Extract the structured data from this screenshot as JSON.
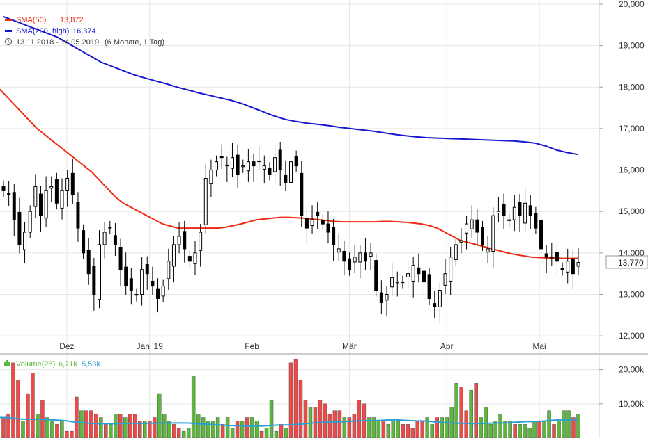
{
  "legend": {
    "sma50_label": "SMA(50)",
    "sma50_value": "13,872",
    "sma200_label": "SMA(200, high)",
    "sma200_value": "16,374",
    "range_text": "13.11.2018 - 14.05.2019",
    "range_detail": "(6 Monate, 1 Tag)",
    "volume_label": "Volume(28)",
    "volume_value": "6,71k",
    "volume_avg_value": "5,53k"
  },
  "last_price_label": "13,770",
  "colors": {
    "sma50": "#ee2a10",
    "sma200": "#1616d0",
    "volume_up": "#5cb83a",
    "volume_down": "#ee4a4a",
    "volume_avg": "#2a9fd6",
    "grid": "#e6e6e6"
  },
  "chart_data": [
    {
      "type": "candlestick",
      "y_ticks": [
        "12,000",
        "13,000",
        "14,000",
        "15,000",
        "16,000",
        "17,000",
        "18,000",
        "19,000",
        "20,000"
      ],
      "y_tick_values": [
        12,
        13,
        14,
        15,
        16,
        17,
        18,
        19,
        20
      ],
      "ylim": [
        11.55,
        20.1
      ],
      "x_ticks": [
        "Dez",
        "Jan '19",
        "Feb",
        "Mär",
        "Apr",
        "Mai"
      ],
      "x_tick_index": [
        13,
        30,
        51,
        71,
        91,
        110
      ],
      "n_days": 119,
      "grid": true,
      "close": [
        15.5,
        15.4,
        14.8,
        14.2,
        14.5,
        15.0,
        15.6,
        14.9,
        15.5,
        15.6,
        15.2,
        15.5,
        15.8,
        15.4,
        14.6,
        14.0,
        13.5,
        13.0,
        14.2,
        14.5,
        14.6,
        14.2,
        13.6,
        13.2,
        13.1,
        13.0,
        13.6,
        13.5,
        13.2,
        12.9,
        13.2,
        13.8,
        14.2,
        14.4,
        14.1,
        13.8,
        14.0,
        14.5,
        15.8,
        16.0,
        16.2,
        16.3,
        16.1,
        16.3,
        15.9,
        16.1,
        16.2,
        16.1,
        16.2,
        16.1,
        15.9,
        16.3,
        16.0,
        15.7,
        16.2,
        16.1,
        14.9,
        14.6,
        14.8,
        14.9,
        14.7,
        14.5,
        14.2,
        14.1,
        13.8,
        13.6,
        13.9,
        14.0,
        13.8,
        14.0,
        13.1,
        12.8,
        13.0,
        13.4,
        13.3,
        13.3,
        13.5,
        13.7,
        13.5,
        13.3,
        12.9,
        12.7,
        13.1,
        13.5,
        13.9,
        14.2,
        14.3,
        14.7,
        14.8,
        14.5,
        14.2,
        14.1,
        14.9,
        15.0,
        14.9,
        14.8,
        15.1,
        14.9,
        15.2,
        14.9,
        14.6,
        14.1,
        13.9,
        13.9,
        13.8,
        13.6,
        13.8,
        13.5,
        13.77
      ],
      "sma50": [
        18.0,
        17.8,
        17.6,
        17.4,
        17.2,
        17.0,
        16.85,
        16.7,
        16.55,
        16.4,
        16.25,
        16.1,
        15.95,
        15.75,
        15.55,
        15.35,
        15.2,
        15.1,
        15.0,
        14.9,
        14.8,
        14.7,
        14.65,
        14.6,
        14.6,
        14.6,
        14.6,
        14.6,
        14.6,
        14.62,
        14.66,
        14.7,
        14.75,
        14.8,
        14.82,
        14.84,
        14.86,
        14.86,
        14.85,
        14.84,
        14.82,
        14.8,
        14.78,
        14.76,
        14.75,
        14.75,
        14.75,
        14.75,
        14.75,
        14.76,
        14.76,
        14.75,
        14.74,
        14.72,
        14.7,
        14.66,
        14.6,
        14.5,
        14.4,
        14.3,
        14.25,
        14.2,
        14.15,
        14.1,
        14.05,
        14.0,
        13.96,
        13.93,
        13.9,
        13.89,
        13.88,
        13.88,
        13.87,
        13.87,
        13.872
      ],
      "sma200": [
        19.7,
        19.6,
        19.5,
        19.4,
        19.3,
        19.2,
        19.05,
        18.9,
        18.75,
        18.6,
        18.5,
        18.4,
        18.3,
        18.22,
        18.15,
        18.08,
        18.0,
        17.93,
        17.86,
        17.8,
        17.74,
        17.68,
        17.6,
        17.5,
        17.4,
        17.3,
        17.22,
        17.17,
        17.13,
        17.1,
        17.07,
        17.03,
        17.0,
        16.97,
        16.94,
        16.9,
        16.86,
        16.83,
        16.8,
        16.78,
        16.77,
        16.76,
        16.75,
        16.74,
        16.73,
        16.72,
        16.71,
        16.7,
        16.68,
        16.65,
        16.58,
        16.48,
        16.42,
        16.374
      ],
      "last_price": 13.77
    },
    {
      "type": "bar",
      "title": "Volume(28)",
      "y_ticks": [
        "10,00k",
        "20,00k"
      ],
      "y_tick_values": [
        10,
        20
      ],
      "ylim": [
        0,
        24
      ],
      "volumes": [
        6,
        7,
        22,
        17,
        5,
        13,
        19,
        7,
        11,
        6,
        5,
        4,
        5,
        2,
        2,
        12,
        8,
        8,
        8,
        7,
        6,
        4,
        4,
        7,
        7,
        6,
        7,
        7,
        5,
        5,
        5,
        6,
        13,
        7,
        5,
        4,
        3,
        2,
        3,
        18,
        7,
        6,
        5,
        5,
        6,
        4,
        6,
        3,
        5,
        5,
        6,
        6,
        5,
        2,
        3,
        11,
        2,
        4,
        3,
        22,
        23,
        17,
        11,
        9,
        9,
        11,
        10,
        7,
        8,
        8,
        6,
        6,
        7,
        11,
        10,
        6,
        6,
        5,
        5,
        4,
        5,
        5,
        4,
        4,
        3,
        5,
        5,
        6,
        4,
        6,
        6,
        6,
        9,
        16,
        15,
        8,
        14,
        16,
        6,
        9,
        4,
        5,
        7,
        5,
        5,
        4,
        4,
        4,
        3,
        5,
        5,
        5,
        8,
        4,
        5,
        8,
        8,
        6,
        7
      ],
      "up": [
        0,
        0,
        0,
        0,
        1,
        0,
        0,
        1,
        0,
        1,
        1,
        0,
        1,
        0,
        0,
        0,
        1,
        0,
        0,
        0,
        1,
        0,
        1,
        1,
        0,
        1,
        0,
        0,
        0,
        1,
        0,
        0,
        1,
        1,
        1,
        0,
        0,
        1,
        1,
        1,
        1,
        1,
        1,
        1,
        1,
        0,
        1,
        1,
        0,
        1,
        0,
        1,
        1,
        0,
        1,
        1,
        1,
        0,
        1,
        0,
        0,
        0,
        0,
        1,
        0,
        0,
        0,
        0,
        0,
        0,
        1,
        0,
        0,
        0,
        0,
        1,
        1,
        1,
        0,
        1,
        1,
        1,
        0,
        0,
        0,
        0,
        0,
        1,
        1,
        0,
        1,
        1,
        1,
        1,
        0,
        0,
        1,
        0,
        1,
        1,
        1,
        1,
        1,
        1,
        1,
        0,
        1,
        1,
        1,
        1,
        0,
        1,
        1,
        0,
        1,
        1,
        1,
        0,
        1
      ],
      "avg": [
        6,
        6,
        5.8,
        5.6,
        5.5,
        5.5,
        5.5,
        5.4,
        5.3,
        5.2,
        5.1,
        4.8,
        4.6,
        4.5,
        4.3,
        4.2,
        4.2,
        4.2,
        4.2,
        4.3,
        4.3,
        4.3,
        4.3,
        4.3,
        4.4,
        4.4,
        4.4,
        4.4,
        4.4,
        4.4,
        4.2,
        4.1,
        4.0,
        3.9,
        3.8,
        3.7,
        3.6,
        3.6,
        3.5,
        3.5,
        3.5,
        3.6,
        3.7,
        3.8,
        3.8,
        3.9,
        4.0,
        4.2,
        4.4,
        4.5,
        4.6,
        4.7,
        4.7,
        4.8,
        4.9,
        5.0,
        5.1,
        5.1,
        5.1,
        5.2,
        5.3,
        5.3,
        5.2,
        5.1,
        5.0,
        5.0,
        4.9,
        4.7,
        4.6,
        4.5,
        4.4,
        4.3,
        4.3,
        4.2,
        4.3,
        4.3,
        4.4,
        4.4,
        4.5,
        4.6,
        4.7,
        4.8,
        4.8,
        4.9,
        5.0,
        5.2,
        5.3,
        5.3,
        5.4,
        5.4
      ]
    }
  ]
}
